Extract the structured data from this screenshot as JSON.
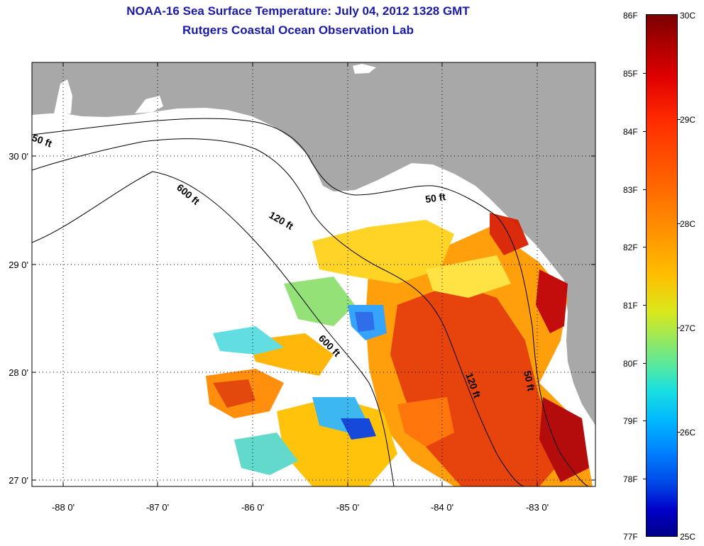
{
  "title": {
    "line1": "NOAA-16 Sea Surface Temperature:  July 04, 2012 1328 GMT",
    "line2": "Rutgers Coastal Ocean Observation Lab"
  },
  "axes": {
    "longitude_labels": [
      "-88 0'",
      "-87 0'",
      "-86 0'",
      "-85 0'",
      "-84 0'",
      "-83 0'"
    ],
    "latitude_labels": [
      "30 0'",
      "29 0'",
      "28 0'",
      "27 0'"
    ],
    "lon_range": [
      -88.35,
      -82.45
    ],
    "lat_range": [
      26.95,
      30.85
    ]
  },
  "contour_labels": [
    "50 ft",
    "600 ft",
    "120 ft",
    "50 ft",
    "600 ft",
    "120 ft",
    "50 ft"
  ],
  "colorbar": {
    "fahrenheit": [
      "86F",
      "85F",
      "84F",
      "83F",
      "82F",
      "81F",
      "80F",
      "79F",
      "78F",
      "77F"
    ],
    "celsius": [
      "30C",
      "29C",
      "28C",
      "27C",
      "26C",
      "25C"
    ],
    "range_c": [
      25,
      30
    ]
  },
  "colors": {
    "land": "#a8a8a8",
    "title": "#1a1aa8",
    "hot": "#c00000",
    "cold": "#0000c8"
  }
}
